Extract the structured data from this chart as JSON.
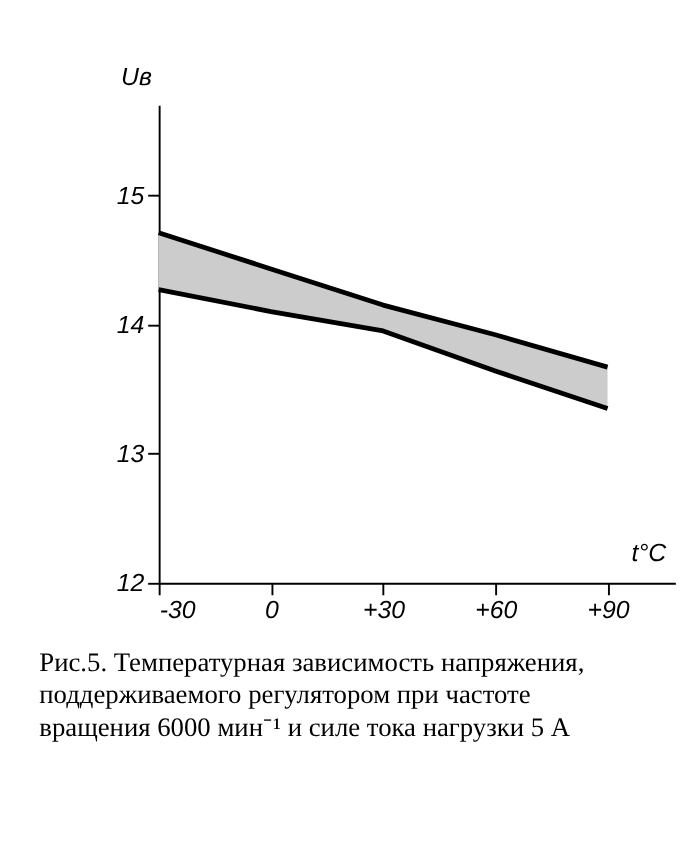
{
  "chart_data": {
    "type": "line",
    "xlabel": "t°C",
    "ylabel": "Uв",
    "x": [
      -30,
      0,
      30,
      60,
      90
    ],
    "series": [
      {
        "color": "#000000",
        "values": [
          14.71,
          14.43,
          14.15,
          13.92,
          13.67
        ],
        "lower": [
          14.27,
          14.1,
          13.95,
          13.64,
          13.35
        ],
        "upper": [
          14.71,
          14.43,
          14.15,
          13.92,
          13.67
        ]
      },
      {
        "color": "#000000",
        "values": [
          14.27,
          14.1,
          13.95,
          13.64,
          13.35
        ]
      }
    ],
    "xlim": [
      -30,
      108
    ],
    "xticks": [
      -30,
      0,
      {
        "value": 30,
        "label": "+30"
      },
      {
        "value": 60,
        "label": "+60"
      },
      {
        "value": 90,
        "label": "+90"
      }
    ],
    "ylim": [
      12,
      15.7
    ],
    "yticks": [
      12,
      13,
      14,
      15
    ],
    "grid": false,
    "marker": "none",
    "line_style": "solid",
    "annotations": [
      "Рис.5. Температурная зависимость напряжения, поддерживаемого регулятором при частоте вращения 6000 мин⁻¹ и силе тока нагрузки 5 А"
    ]
  }
}
